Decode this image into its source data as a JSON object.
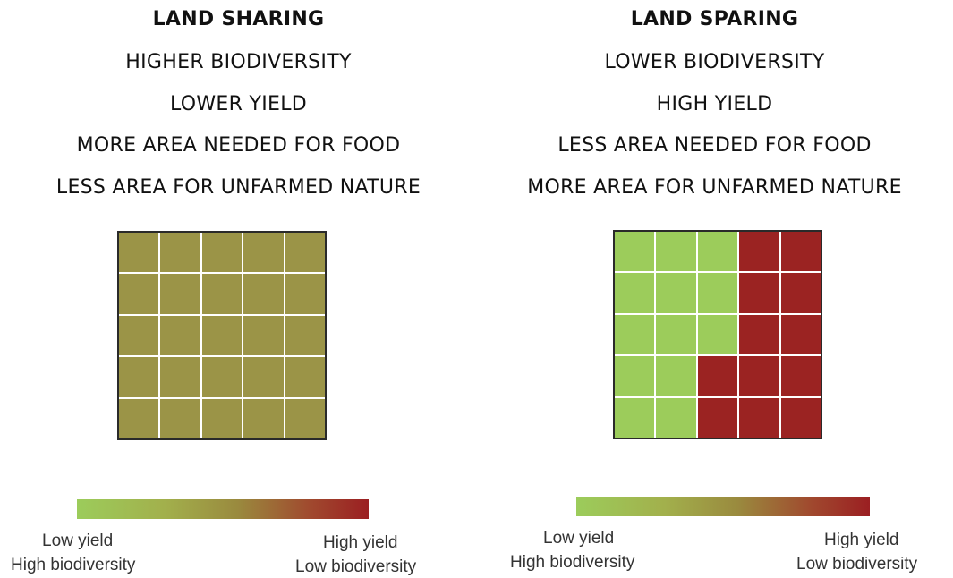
{
  "colors": {
    "sharing_fill": "#9b9447",
    "sparing_green": "#9ccc5b",
    "sparing_red": "#9b2322",
    "grid_line": "#ffffff",
    "border": "#2a2a2a",
    "gradient_start": "#9ccc5b",
    "gradient_end": "#9b1f22"
  },
  "left": {
    "title": "LAND SHARING",
    "lines": [
      "HIGHER BIODIVERSITY",
      "LOWER YIELD",
      "MORE AREA NEEDED FOR FOOD",
      "LESS AREA FOR UNFARMED NATURE"
    ],
    "grid": [
      [
        "M",
        "M",
        "M",
        "M",
        "M"
      ],
      [
        "M",
        "M",
        "M",
        "M",
        "M"
      ],
      [
        "M",
        "M",
        "M",
        "M",
        "M"
      ],
      [
        "M",
        "M",
        "M",
        "M",
        "M"
      ],
      [
        "M",
        "M",
        "M",
        "M",
        "M"
      ]
    ],
    "legend": {
      "low_label_1": "Low yield",
      "low_label_2": "High biodiversity",
      "high_label_1": "High yield",
      "high_label_2": "Low biodiversity"
    }
  },
  "right": {
    "title": "LAND SPARING",
    "lines": [
      "LOWER BIODIVERSITY",
      "HIGH YIELD",
      "LESS AREA NEEDED FOR FOOD",
      "MORE AREA FOR UNFARMED NATURE"
    ],
    "grid": [
      [
        "G",
        "G",
        "G",
        "R",
        "R"
      ],
      [
        "G",
        "G",
        "G",
        "R",
        "R"
      ],
      [
        "G",
        "G",
        "G",
        "R",
        "R"
      ],
      [
        "G",
        "G",
        "R",
        "R",
        "R"
      ],
      [
        "G",
        "G",
        "R",
        "R",
        "R"
      ]
    ],
    "legend": {
      "low_label_1": "Low yield",
      "low_label_2": "High biodiversity",
      "high_label_1": "High yield",
      "high_label_2": "Low biodiversity"
    }
  }
}
